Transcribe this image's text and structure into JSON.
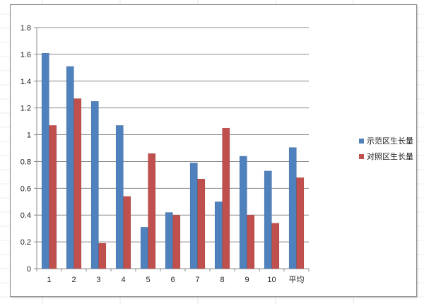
{
  "chart_data": {
    "type": "bar",
    "categories": [
      "1",
      "2",
      "3",
      "4",
      "5",
      "6",
      "7",
      "8",
      "9",
      "10",
      "平均"
    ],
    "series": [
      {
        "name": "示范区生长量",
        "color": "#4f81bd",
        "values": [
          1.61,
          1.51,
          1.25,
          1.07,
          0.31,
          0.42,
          0.79,
          0.5,
          0.84,
          0.73,
          0.905
        ]
      },
      {
        "name": "对照区生长量",
        "color": "#c0504d",
        "values": [
          1.07,
          1.27,
          0.19,
          0.54,
          0.86,
          0.4,
          0.67,
          1.05,
          0.4,
          0.34,
          0.68
        ]
      }
    ],
    "ylim": [
      0,
      1.8
    ],
    "yticks": [
      "0",
      "0.2",
      "0.4",
      "0.6",
      "0.8",
      "1",
      "1.2",
      "1.4",
      "1.6",
      "1.8"
    ],
    "grid": true,
    "legend": "right"
  }
}
